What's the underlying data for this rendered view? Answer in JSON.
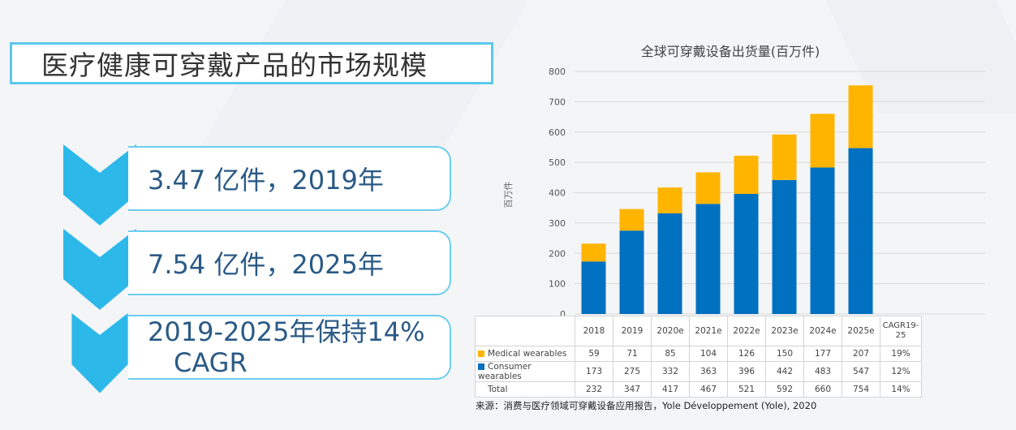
{
  "slide": {
    "title": "医疗健康可穿戴产品的市场规模",
    "points": [
      {
        "text": "3.47 亿件，2019年"
      },
      {
        "text": "7.54 亿件，2025年"
      },
      {
        "line1": "2019-2025年保持14%",
        "line2": "CAGR"
      }
    ],
    "source": "来源：消费与医疗领域可穿戴设备应用报告，Yole Développement (Yole), 2020"
  },
  "colors": {
    "accent": "#5bc8ee",
    "chevron": "#2db8ea",
    "medical": "#ffb400",
    "consumer": "#0070c0"
  },
  "chart_data": {
    "type": "bar",
    "stacked": true,
    "title": "全球可穿戴设备出货量(百万件)",
    "ylabel": "百万件",
    "ylim": [
      0,
      800
    ],
    "yticks": [
      0,
      100,
      200,
      300,
      400,
      500,
      600,
      700,
      800
    ],
    "grid": true,
    "categories": [
      "2018",
      "2019",
      "2020e",
      "2021e",
      "2022e",
      "2023e",
      "2024e",
      "2025e"
    ],
    "extra_column": "CAGR19-25",
    "series": [
      {
        "name": "Medical wearables",
        "color": "#ffb400",
        "values": [
          59,
          71,
          85,
          104,
          126,
          150,
          177,
          207
        ],
        "cagr": "19%"
      },
      {
        "name": "Consumer wearables",
        "color": "#0070c0",
        "values": [
          173,
          275,
          332,
          363,
          396,
          442,
          483,
          547
        ],
        "cagr": "12%"
      }
    ],
    "total": {
      "name": "Total",
      "values": [
        232,
        347,
        417,
        467,
        521,
        592,
        660,
        754
      ],
      "cagr": "14%"
    }
  }
}
